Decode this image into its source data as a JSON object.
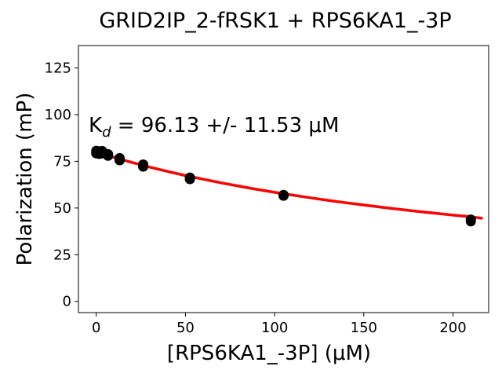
{
  "chart_data": {
    "type": "scatter",
    "title": "GRID2IP_2-fRSK1 + RPS6KA1_-3P",
    "xlabel": "[RPS6KA1_-3P] (μM)",
    "ylabel": "Polarization (mP)",
    "xlim": [
      -10,
      220
    ],
    "ylim": [
      -6,
      137
    ],
    "xticks": [
      0,
      50,
      100,
      150,
      200
    ],
    "yticks": [
      0,
      25,
      50,
      75,
      100,
      125
    ],
    "grid": false,
    "annotation": {
      "prefix": "K",
      "subscript": "d",
      "text": " = 96.13 +/- 11.53 μM"
    },
    "series": [
      {
        "type": "scatter",
        "color": "#000000",
        "points": [
          {
            "x": 0.0,
            "y": 80.6
          },
          {
            "x": 0.0,
            "y": 79.3
          },
          {
            "x": 1.6,
            "y": 80.3
          },
          {
            "x": 1.6,
            "y": 79.0
          },
          {
            "x": 3.3,
            "y": 80.5
          },
          {
            "x": 3.3,
            "y": 79.3
          },
          {
            "x": 6.6,
            "y": 78.8
          },
          {
            "x": 6.6,
            "y": 78.0
          },
          {
            "x": 13.1,
            "y": 76.7
          },
          {
            "x": 13.1,
            "y": 75.6
          },
          {
            "x": 26.3,
            "y": 73.3
          },
          {
            "x": 26.3,
            "y": 72.2
          },
          {
            "x": 52.5,
            "y": 66.3
          },
          {
            "x": 52.5,
            "y": 65.5
          },
          {
            "x": 105.0,
            "y": 57.0
          },
          {
            "x": 105.0,
            "y": 56.6
          },
          {
            "x": 210.0,
            "y": 43.8
          },
          {
            "x": 210.0,
            "y": 42.9
          }
        ]
      },
      {
        "type": "line",
        "color": "#ff0000",
        "points": [
          {
            "x": 0,
            "y": 80.0
          },
          {
            "x": 10,
            "y": 77.1
          },
          {
            "x": 20,
            "y": 74.4
          },
          {
            "x": 30,
            "y": 71.9
          },
          {
            "x": 40,
            "y": 69.6
          },
          {
            "x": 50,
            "y": 67.4
          },
          {
            "x": 60,
            "y": 65.4
          },
          {
            "x": 70,
            "y": 63.5
          },
          {
            "x": 80,
            "y": 61.7
          },
          {
            "x": 90,
            "y": 60.0
          },
          {
            "x": 100,
            "y": 58.4
          },
          {
            "x": 110,
            "y": 56.9
          },
          {
            "x": 120,
            "y": 55.5
          },
          {
            "x": 130,
            "y": 54.1
          },
          {
            "x": 140,
            "y": 52.8
          },
          {
            "x": 150,
            "y": 51.6
          },
          {
            "x": 160,
            "y": 50.4
          },
          {
            "x": 170,
            "y": 49.3
          },
          {
            "x": 180,
            "y": 48.2
          },
          {
            "x": 190,
            "y": 47.2
          },
          {
            "x": 200,
            "y": 46.2
          },
          {
            "x": 210,
            "y": 45.3
          },
          {
            "x": 216,
            "y": 44.5
          }
        ]
      }
    ]
  }
}
